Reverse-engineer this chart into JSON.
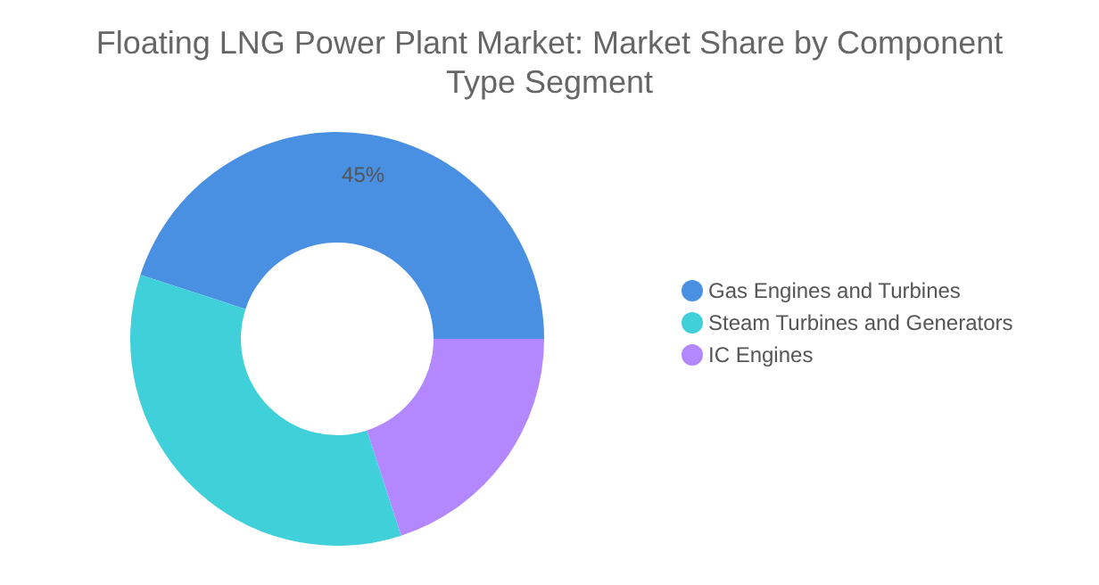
{
  "chart_data": {
    "type": "donut",
    "title": "Floating LNG Power Plant Market: Market Share by Component Type Segment",
    "categories": [
      "Gas Engines and Turbines",
      "Steam Turbines and Generators",
      "IC Engines"
    ],
    "values": [
      45,
      35,
      20
    ],
    "colors": [
      "#4a90e2",
      "#40d0da",
      "#b388ff"
    ],
    "value_labels": [
      "45%",
      null,
      null
    ],
    "legend": "right"
  }
}
